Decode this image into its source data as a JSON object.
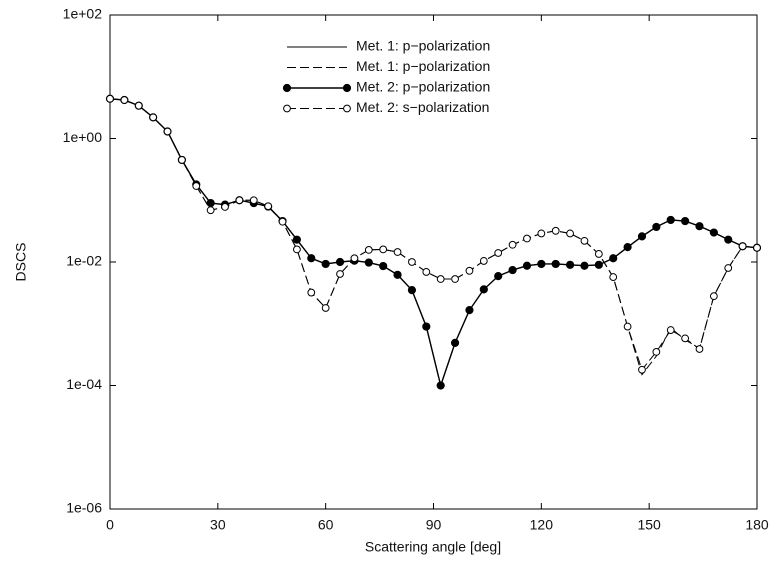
{
  "chart_data": {
    "type": "line",
    "xlabel": "Scattering angle [deg]",
    "ylabel": "DSCS",
    "x": [
      0,
      4,
      8,
      12,
      16,
      20,
      24,
      28,
      32,
      36,
      40,
      44,
      48,
      52,
      56,
      60,
      64,
      68,
      72,
      76,
      80,
      84,
      88,
      92,
      96,
      100,
      104,
      108,
      112,
      116,
      120,
      124,
      128,
      132,
      136,
      140,
      144,
      148,
      152,
      156,
      160,
      164,
      168,
      172,
      176,
      180
    ],
    "xlim": [
      0,
      180
    ],
    "xticks": [
      0,
      30,
      60,
      90,
      120,
      150,
      180
    ],
    "ylim": [
      1e-06,
      100
    ],
    "log_y": true,
    "yticks": [
      {
        "value": 1e-06,
        "label": "1e-06"
      },
      {
        "value": 0.0001,
        "label": "1e-04"
      },
      {
        "value": 0.01,
        "label": "1e-02"
      },
      {
        "value": 1,
        "label": "1e+00"
      },
      {
        "value": 100,
        "label": "1e+02"
      }
    ],
    "series": [
      {
        "name": "Met. 1: p−polarization",
        "color": "#000000",
        "dashed": false,
        "marker": "none",
        "values": [
          4.4,
          4.2,
          3.4,
          2.2,
          1.3,
          0.45,
          0.18,
          0.09,
          0.085,
          0.1,
          0.09,
          0.079,
          0.046,
          0.023,
          0.0115,
          0.0093,
          0.01,
          0.0105,
          0.0098,
          0.0086,
          0.0062,
          0.0035,
          0.0009,
          0.0001,
          0.00049,
          0.00166,
          0.0036,
          0.0059,
          0.0074,
          0.0087,
          0.0093,
          0.0093,
          0.009,
          0.0087,
          0.009,
          0.0115,
          0.0174,
          0.026,
          0.037,
          0.048,
          0.046,
          0.038,
          0.03,
          0.023,
          0.018,
          0.017
        ]
      },
      {
        "name": "Met. 1: p−polarization",
        "color": "#000000",
        "dashed": true,
        "marker": "none",
        "values": [
          4.4,
          4.2,
          3.4,
          2.2,
          1.3,
          0.45,
          0.17,
          0.069,
          0.078,
          0.1,
          0.1,
          0.08,
          0.045,
          0.016,
          0.0032,
          0.0018,
          0.0064,
          0.0115,
          0.0157,
          0.016,
          0.0145,
          0.01,
          0.0069,
          0.0053,
          0.0053,
          0.0072,
          0.0104,
          0.014,
          0.019,
          0.024,
          0.029,
          0.032,
          0.029,
          0.022,
          0.0135,
          0.0057,
          0.0009,
          0.00015,
          0.0003,
          0.00085,
          0.00055,
          0.0004,
          0.0028,
          0.008,
          0.018,
          0.017
        ]
      },
      {
        "name": "Met. 2: p−polarization",
        "color": "#000000",
        "dashed": false,
        "marker": "filled",
        "values": [
          4.4,
          4.2,
          3.4,
          2.2,
          1.3,
          0.45,
          0.18,
          0.09,
          0.085,
          0.1,
          0.09,
          0.079,
          0.046,
          0.023,
          0.0115,
          0.0093,
          0.01,
          0.0105,
          0.0098,
          0.0086,
          0.0062,
          0.0035,
          0.0009,
          0.0001,
          0.00049,
          0.00166,
          0.0036,
          0.0059,
          0.0074,
          0.0087,
          0.0093,
          0.0093,
          0.009,
          0.0087,
          0.009,
          0.0115,
          0.0174,
          0.026,
          0.037,
          0.048,
          0.046,
          0.038,
          0.03,
          0.023,
          0.018,
          0.017
        ]
      },
      {
        "name": "Met. 2: s−polarization",
        "color": "#000000",
        "dashed": true,
        "marker": "open",
        "values": [
          4.4,
          4.2,
          3.4,
          2.2,
          1.3,
          0.45,
          0.17,
          0.069,
          0.078,
          0.1,
          0.1,
          0.08,
          0.045,
          0.016,
          0.0032,
          0.0018,
          0.0064,
          0.0115,
          0.0157,
          0.016,
          0.0145,
          0.01,
          0.0069,
          0.0053,
          0.0053,
          0.0072,
          0.0104,
          0.014,
          0.019,
          0.024,
          0.029,
          0.032,
          0.029,
          0.022,
          0.0135,
          0.0057,
          0.0009,
          0.00018,
          0.00035,
          0.00079,
          0.00058,
          0.00039,
          0.0028,
          0.008,
          0.018,
          0.017
        ]
      }
    ]
  }
}
